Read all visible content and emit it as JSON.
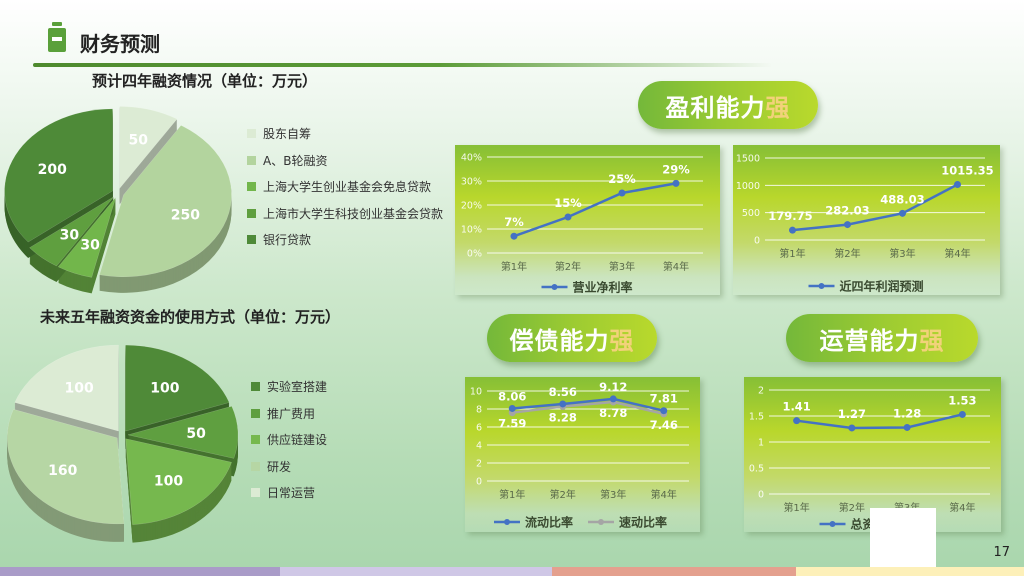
{
  "header": {
    "title": "财务预测",
    "icon": "document-tab-icon"
  },
  "page_number": "17",
  "pills": [
    {
      "main": "盈利能力",
      "accent": "强"
    },
    {
      "main": "偿债能力",
      "accent": "强"
    },
    {
      "main": "运营能力",
      "accent": "强"
    }
  ],
  "chart_data": [
    {
      "type": "pie",
      "title": "预计四年融资情况（单位：万元）",
      "categories": [
        "股东自筹",
        "A、B轮融资",
        "上海大学生创业基金会免息贷款",
        "上海市大学生科技创业基金会贷款",
        "银行贷款"
      ],
      "values": [
        50,
        250,
        30,
        30,
        200
      ],
      "labels": [
        "50",
        "250",
        "30",
        "30",
        "200"
      ],
      "colors": [
        "#dcebd4",
        "#b3d49e",
        "#72b64b",
        "#5f9f3f",
        "#4e8a38"
      ],
      "legend": "right",
      "style": "3d-exploded"
    },
    {
      "type": "pie",
      "title": "未来五年融资资金的使用方式（单位：万元）",
      "categories": [
        "实验室搭建",
        "推广费用",
        "供应链建设",
        "研发",
        "日常运营"
      ],
      "values": [
        100,
        50,
        100,
        160,
        100
      ],
      "labels": [
        "100",
        "50",
        "100",
        "160",
        "100"
      ],
      "colors": [
        "#4f8a38",
        "#5f9f40",
        "#76b84e",
        "#b6d6a4",
        "#dcebd4"
      ],
      "legend": "right",
      "style": "3d-exploded"
    },
    {
      "type": "line",
      "categories": [
        "第1年",
        "第2年",
        "第3年",
        "第4年"
      ],
      "ylim": [
        0,
        40
      ],
      "yticks": [
        0,
        10,
        20,
        30,
        40
      ],
      "ytick_labels": [
        "0%",
        "10%",
        "20%",
        "30%",
        "40%"
      ],
      "grid": true,
      "legend": "bottom",
      "series": [
        {
          "name": "营业净利率",
          "values": [
            7,
            15,
            25,
            29
          ],
          "labels": [
            "7%",
            "15%",
            "25%",
            "29%"
          ],
          "color": "#4472c4"
        }
      ]
    },
    {
      "type": "line",
      "categories": [
        "第1年",
        "第2年",
        "第3年",
        "第4年"
      ],
      "ylim": [
        0,
        1500
      ],
      "yticks": [
        0,
        500,
        1000,
        1500
      ],
      "ytick_labels": [
        "0",
        "500",
        "1000",
        "1500"
      ],
      "grid": true,
      "legend": "bottom",
      "series": [
        {
          "name": "近四年利润预测",
          "values": [
            179.75,
            282.03,
            488.03,
            1015.35
          ],
          "labels": [
            "179.75",
            "282.03",
            "488.03",
            "1015.35"
          ],
          "color": "#4472c4"
        }
      ]
    },
    {
      "type": "line",
      "categories": [
        "第1年",
        "第2年",
        "第3年",
        "第4年"
      ],
      "ylim": [
        0,
        10
      ],
      "yticks": [
        0,
        2,
        4,
        6,
        8,
        10
      ],
      "ytick_labels": [
        "0",
        "2",
        "4",
        "6",
        "8",
        "10"
      ],
      "grid": true,
      "legend": "bottom",
      "series": [
        {
          "name": "流动比率",
          "values": [
            8.06,
            8.56,
            9.12,
            7.81
          ],
          "labels": [
            "8.06",
            "8.56",
            "9.12",
            "7.81"
          ],
          "color": "#4472c4"
        },
        {
          "name": "速动比率",
          "values": [
            7.59,
            8.28,
            8.78,
            7.46
          ],
          "labels": [
            "7.59",
            "8.28",
            "8.78",
            "7.46"
          ],
          "color": "#a5a5a5"
        }
      ]
    },
    {
      "type": "line",
      "categories": [
        "第1年",
        "第2年",
        "第3年",
        "第4年"
      ],
      "ylim": [
        0,
        2
      ],
      "yticks": [
        0,
        0.5,
        1,
        1.5,
        2
      ],
      "ytick_labels": [
        "0",
        "0.5",
        "1",
        "1.5",
        "2"
      ],
      "grid": true,
      "legend": "bottom",
      "series": [
        {
          "name": "总资产周转率",
          "values": [
            1.41,
            1.27,
            1.28,
            1.53
          ],
          "labels": [
            "1.41",
            "1.27",
            "1.28",
            "1.53"
          ],
          "color": "#4472c4"
        }
      ]
    }
  ],
  "bottom_bar_colors": [
    "#a99bc8",
    "#cfc7e6",
    "#e4a08e",
    "#fdf0b9"
  ]
}
